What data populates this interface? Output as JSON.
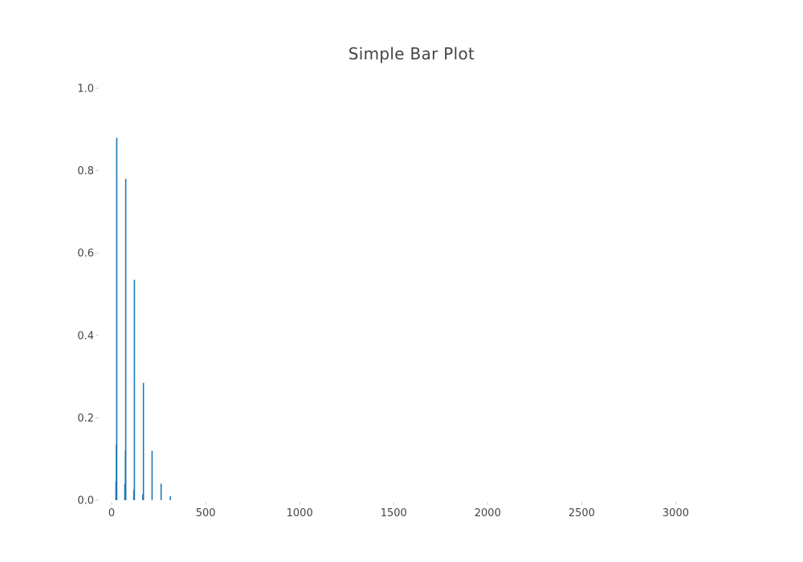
{
  "chart_data": {
    "type": "bar",
    "title": "Simple Bar Plot",
    "xlabel": "",
    "ylabel": "",
    "xlim": [
      -60,
      3250
    ],
    "ylim": [
      0,
      1.0
    ],
    "xticks": [
      0,
      500,
      1000,
      1500,
      2000,
      2500,
      3000
    ],
    "xtick_labels": [
      "0",
      "500",
      "1000",
      "1500",
      "2000",
      "2500",
      "3000"
    ],
    "yticks": [
      0.0,
      0.2,
      0.4,
      0.6,
      0.8,
      1.0
    ],
    "ytick_labels": [
      "0.0",
      "0.2",
      "0.4",
      "0.6",
      "0.8",
      "1.0"
    ],
    "grid": false,
    "bar_color": "#1f77b4",
    "bars": [
      {
        "x": 23,
        "y": 0.045
      },
      {
        "x": 25,
        "y": 0.135
      },
      {
        "x": 27,
        "y": 0.88
      },
      {
        "x": 70,
        "y": 0.04
      },
      {
        "x": 73,
        "y": 0.12
      },
      {
        "x": 75,
        "y": 0.78
      },
      {
        "x": 118,
        "y": 0.025
      },
      {
        "x": 121,
        "y": 0.535
      },
      {
        "x": 166,
        "y": 0.015
      },
      {
        "x": 169,
        "y": 0.285
      },
      {
        "x": 215,
        "y": 0.12
      },
      {
        "x": 263,
        "y": 0.04
      },
      {
        "x": 312,
        "y": 0.01
      }
    ]
  }
}
